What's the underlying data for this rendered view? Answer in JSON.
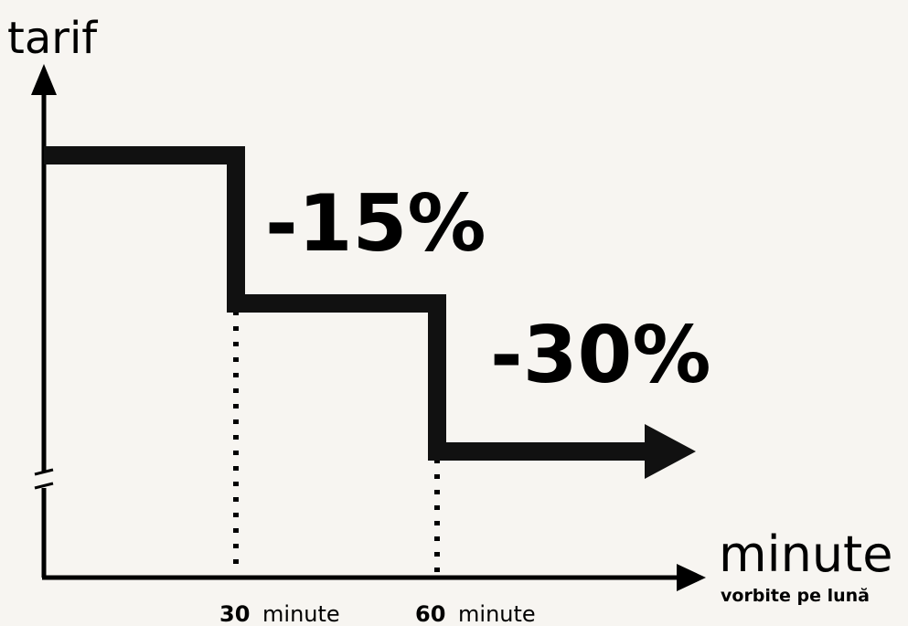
{
  "chart_data": {
    "type": "line",
    "step": true,
    "ylabel": "tarif",
    "xlabel": "minute",
    "xlabel_sub": "vorbite pe lună",
    "y_axis_break": true,
    "x": [
      0,
      30,
      60
    ],
    "x_max_display": 80,
    "levels_relative": [
      1.0,
      0.85,
      0.7
    ],
    "annotations": [
      "-15%",
      "-30%"
    ],
    "ticks": [
      {
        "x": 30,
        "number": "30",
        "unit": "minute"
      },
      {
        "x": 60,
        "number": "60",
        "unit": "minute"
      }
    ],
    "dotted_verticals_at": [
      30,
      60
    ],
    "line_color": "#111111",
    "arrow_end": true
  }
}
